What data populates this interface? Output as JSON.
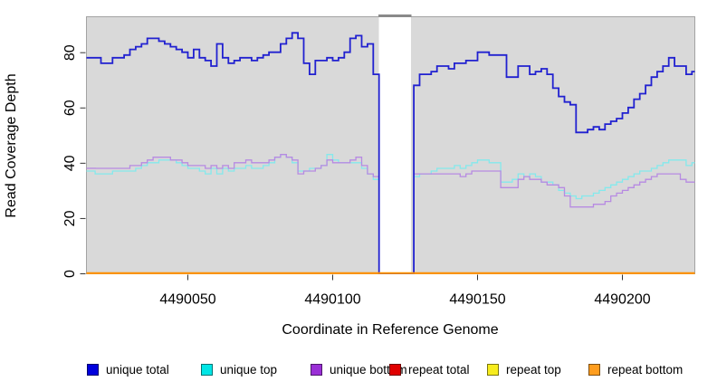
{
  "figure": {
    "kind": "R step-line coverage plot",
    "background": "#ffffff",
    "plot_background": "#d9d9d9",
    "frame_color": "#a3a3a3",
    "gap_cap_color": "#8a8a8a",
    "zero_line_color": "#ff9100"
  },
  "chart_data": {
    "type": "line",
    "subtype": "step",
    "title": "",
    "xlabel": "Coordinate in Reference Genome",
    "ylabel": "Read Coverage Depth",
    "xlim": [
      4490015,
      4490225
    ],
    "ylim": [
      0,
      93
    ],
    "xticks": [
      4490050,
      4490100,
      4490150,
      4490200
    ],
    "yticks": [
      0,
      20,
      40,
      60,
      80
    ],
    "grid": false,
    "legend_position": "bottom",
    "plot_background": "#d9d9d9",
    "gap_region": {
      "x0": 4490116,
      "x1": 4490127,
      "fill": "#ffffff",
      "note": "white band where coverage drops to 0"
    },
    "x_start": 4490016,
    "x_step": 2,
    "series": [
      {
        "name": "unique total",
        "color": "#2121d0",
        "legend_color": "#0000dd",
        "line_width": 1.8,
        "values": [
          78,
          78,
          76,
          76,
          78,
          78,
          79,
          81,
          82,
          83,
          85,
          85,
          84,
          83,
          82,
          81,
          80,
          78,
          81,
          78,
          77,
          75,
          83,
          78,
          76,
          77,
          78,
          78,
          77,
          78,
          79,
          80,
          80,
          83,
          85,
          87,
          85,
          76,
          72,
          77,
          77,
          78,
          77,
          78,
          80,
          85,
          86,
          82,
          83,
          72,
          0,
          0,
          0,
          0,
          0,
          0,
          68,
          72,
          72,
          73,
          75,
          75,
          74,
          76,
          76,
          77,
          77,
          80,
          80,
          79,
          79,
          79,
          71,
          71,
          75,
          75,
          72,
          73,
          74,
          72,
          67,
          64,
          62,
          61,
          51,
          51,
          52,
          53,
          52,
          54,
          55,
          56,
          58,
          60,
          63,
          65,
          68,
          71,
          73,
          75,
          78,
          75,
          75,
          72,
          73
        ]
      },
      {
        "name": "unique top",
        "color": "#84e9ec",
        "legend_color": "#00e6e6",
        "line_width": 1.3,
        "values": [
          37,
          36,
          36,
          36,
          37,
          37,
          37,
          37,
          38,
          39,
          40,
          40,
          41,
          41,
          41,
          40,
          39,
          38,
          38,
          37,
          36,
          38,
          36,
          38,
          37,
          38,
          38,
          39,
          38,
          38,
          39,
          40,
          42,
          43,
          42,
          40,
          37,
          37,
          38,
          38,
          39,
          43,
          41,
          40,
          40,
          40,
          40,
          38,
          36,
          34,
          0,
          0,
          0,
          0,
          0,
          0,
          35,
          36,
          36,
          37,
          38,
          38,
          38,
          39,
          38,
          39,
          40,
          41,
          41,
          40,
          40,
          33,
          33,
          34,
          36,
          35,
          36,
          35,
          33,
          33,
          32,
          30,
          29,
          28,
          27,
          28,
          28,
          29,
          30,
          31,
          32,
          33,
          34,
          35,
          36,
          37,
          37,
          38,
          39,
          40,
          41,
          41,
          41,
          39,
          40
        ]
      },
      {
        "name": "unique bottom",
        "color": "#b78ae2",
        "legend_color": "#9a2fd6",
        "line_width": 1.3,
        "values": [
          38,
          38,
          38,
          38,
          38,
          38,
          38,
          39,
          39,
          40,
          41,
          42,
          42,
          42,
          41,
          41,
          40,
          39,
          39,
          39,
          38,
          39,
          38,
          39,
          38,
          40,
          40,
          41,
          40,
          40,
          40,
          41,
          42,
          43,
          42,
          41,
          36,
          37,
          37,
          38,
          39,
          41,
          40,
          40,
          40,
          41,
          42,
          39,
          36,
          35,
          0,
          0,
          0,
          0,
          0,
          0,
          36,
          36,
          36,
          36,
          36,
          36,
          36,
          36,
          35,
          36,
          37,
          37,
          37,
          37,
          37,
          31,
          31,
          31,
          34,
          35,
          34,
          34,
          33,
          32,
          32,
          31,
          28,
          24,
          24,
          24,
          24,
          25,
          25,
          26,
          28,
          29,
          30,
          31,
          32,
          33,
          34,
          35,
          36,
          36,
          36,
          36,
          34,
          33,
          33
        ]
      },
      {
        "name": "repeat total",
        "color": "#dd0000",
        "legend_color": "#e00000",
        "line_width": 1.5,
        "values_constant": 0
      },
      {
        "name": "repeat top",
        "color": "#f2e520",
        "legend_color": "#f7ec1d",
        "line_width": 1.5,
        "values_constant": 0
      },
      {
        "name": "repeat bottom",
        "color": "#ff9100",
        "legend_color": "#ff9d1e",
        "line_width": 2,
        "values_constant": 0
      }
    ]
  }
}
